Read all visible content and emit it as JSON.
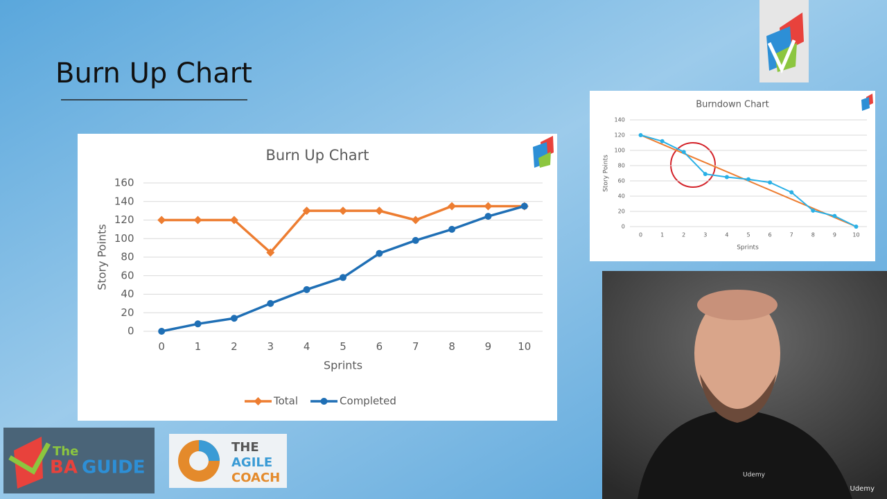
{
  "slide": {
    "title": "Burn Up Chart"
  },
  "logos": {
    "ba_guide": [
      "The",
      "BA",
      "GUIDE"
    ],
    "agile_coach": [
      "THE",
      "AGILE",
      "COACH"
    ]
  },
  "video": {
    "watermark": "Udemy",
    "shirt_text": "Udemy"
  },
  "chart_data": [
    {
      "type": "line",
      "title": "Burn Up Chart",
      "xlabel": "Sprints",
      "ylabel": "Story Points",
      "categories": [
        "0",
        "1",
        "2",
        "3",
        "4",
        "5",
        "6",
        "7",
        "8",
        "9",
        "10"
      ],
      "series": [
        {
          "name": "Total",
          "color": "#ed7d31",
          "marker": "diamond",
          "values": [
            120,
            120,
            120,
            85,
            130,
            130,
            130,
            120,
            135,
            135,
            135
          ]
        },
        {
          "name": "Completed",
          "color": "#1f6fb5",
          "marker": "circle",
          "values": [
            0,
            8,
            14,
            30,
            45,
            58,
            84,
            98,
            110,
            124,
            135
          ]
        }
      ],
      "ylim": [
        0,
        160
      ],
      "yticks": [
        0,
        20,
        40,
        60,
        80,
        100,
        120,
        140,
        160
      ],
      "grid": true,
      "legend": "bottom"
    },
    {
      "type": "line",
      "title": "Burndown Chart",
      "xlabel": "Sprints",
      "ylabel": "Story Points",
      "categories": [
        "0",
        "1",
        "2",
        "3",
        "4",
        "5",
        "6",
        "7",
        "8",
        "9",
        "10"
      ],
      "series": [
        {
          "color": "#ed7d31",
          "marker": "none",
          "values": [
            120,
            108,
            96,
            84,
            72,
            60,
            48,
            36,
            24,
            12,
            0
          ]
        },
        {
          "color": "#2ab0e6",
          "marker": "circle",
          "values": [
            120,
            112,
            98,
            69,
            65,
            62,
            58,
            45,
            21,
            14,
            0
          ]
        }
      ],
      "ylim": [
        0,
        140
      ],
      "yticks": [
        0,
        20,
        40,
        60,
        80,
        100,
        120,
        140
      ],
      "grid": true
    }
  ]
}
